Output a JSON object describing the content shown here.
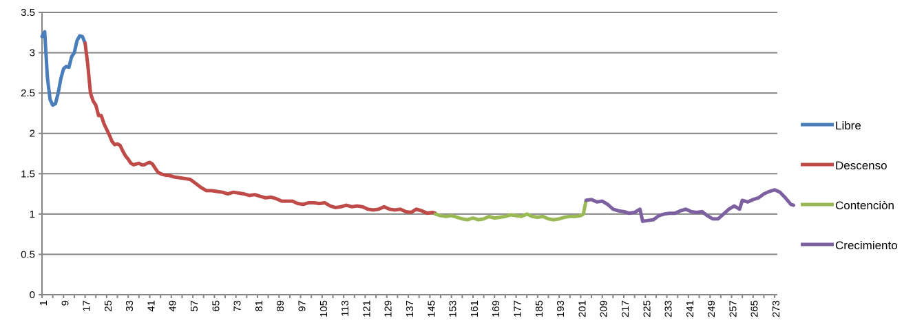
{
  "chart_data": {
    "type": "line",
    "title": "",
    "xlabel": "",
    "ylabel": "",
    "ylim": [
      0,
      3.5
    ],
    "xlim": [
      1,
      273
    ],
    "y_ticks": [
      "0",
      "0.5",
      "1",
      "1.5",
      "2",
      "2.5",
      "3",
      "3.5"
    ],
    "x_ticks": [
      1,
      9,
      17,
      25,
      33,
      41,
      49,
      57,
      65,
      73,
      81,
      89,
      97,
      105,
      113,
      121,
      129,
      137,
      145,
      153,
      161,
      169,
      177,
      185,
      193,
      201,
      209,
      217,
      225,
      233,
      241,
      249,
      257,
      265,
      273
    ],
    "grid": "horizontal",
    "legend_position": "right",
    "series": [
      {
        "name": "Libre",
        "color": "#4a7ebb",
        "points": [
          [
            1,
            3.2
          ],
          [
            2,
            3.26
          ],
          [
            3,
            2.7
          ],
          [
            4,
            2.42
          ],
          [
            5,
            2.35
          ],
          [
            6,
            2.37
          ],
          [
            7,
            2.5
          ],
          [
            8,
            2.68
          ],
          [
            9,
            2.8
          ],
          [
            10,
            2.83
          ],
          [
            11,
            2.82
          ],
          [
            12,
            2.95
          ],
          [
            13,
            3.0
          ],
          [
            14,
            3.15
          ],
          [
            15,
            3.21
          ],
          [
            16,
            3.2
          ],
          [
            17,
            3.12
          ]
        ]
      },
      {
        "name": "Descenso",
        "color": "#be4b48",
        "points": [
          [
            17,
            3.12
          ],
          [
            18,
            2.85
          ],
          [
            19,
            2.5
          ],
          [
            20,
            2.4
          ],
          [
            21,
            2.35
          ],
          [
            22,
            2.22
          ],
          [
            23,
            2.22
          ],
          [
            24,
            2.12
          ],
          [
            25,
            2.05
          ],
          [
            26,
            1.98
          ],
          [
            27,
            1.9
          ],
          [
            28,
            1.86
          ],
          [
            29,
            1.87
          ],
          [
            30,
            1.85
          ],
          [
            31,
            1.78
          ],
          [
            32,
            1.72
          ],
          [
            33,
            1.68
          ],
          [
            34,
            1.63
          ],
          [
            35,
            1.61
          ],
          [
            36,
            1.62
          ],
          [
            37,
            1.63
          ],
          [
            38,
            1.61
          ],
          [
            39,
            1.61
          ],
          [
            40,
            1.63
          ],
          [
            41,
            1.64
          ],
          [
            42,
            1.62
          ],
          [
            43,
            1.57
          ],
          [
            44,
            1.52
          ],
          [
            45,
            1.5
          ],
          [
            46,
            1.49
          ],
          [
            47,
            1.48
          ],
          [
            48,
            1.48
          ],
          [
            49,
            1.47
          ],
          [
            50,
            1.46
          ],
          [
            52,
            1.45
          ],
          [
            54,
            1.44
          ],
          [
            56,
            1.43
          ],
          [
            58,
            1.38
          ],
          [
            60,
            1.33
          ],
          [
            62,
            1.29
          ],
          [
            64,
            1.29
          ],
          [
            66,
            1.28
          ],
          [
            68,
            1.27
          ],
          [
            70,
            1.25
          ],
          [
            72,
            1.27
          ],
          [
            74,
            1.26
          ],
          [
            76,
            1.25
          ],
          [
            78,
            1.23
          ],
          [
            80,
            1.24
          ],
          [
            82,
            1.22
          ],
          [
            84,
            1.2
          ],
          [
            86,
            1.21
          ],
          [
            88,
            1.19
          ],
          [
            90,
            1.16
          ],
          [
            92,
            1.16
          ],
          [
            94,
            1.16
          ],
          [
            96,
            1.13
          ],
          [
            98,
            1.12
          ],
          [
            100,
            1.14
          ],
          [
            102,
            1.14
          ],
          [
            104,
            1.13
          ],
          [
            106,
            1.14
          ],
          [
            108,
            1.1
          ],
          [
            110,
            1.08
          ],
          [
            112,
            1.09
          ],
          [
            114,
            1.11
          ],
          [
            116,
            1.09
          ],
          [
            118,
            1.1
          ],
          [
            120,
            1.09
          ],
          [
            122,
            1.06
          ],
          [
            124,
            1.05
          ],
          [
            126,
            1.06
          ],
          [
            128,
            1.09
          ],
          [
            130,
            1.06
          ],
          [
            132,
            1.05
          ],
          [
            134,
            1.06
          ],
          [
            136,
            1.03
          ],
          [
            138,
            1.02
          ],
          [
            140,
            1.06
          ],
          [
            142,
            1.04
          ],
          [
            144,
            1.01
          ],
          [
            146,
            1.02
          ],
          [
            147,
            1.01
          ]
        ]
      },
      {
        "name": "Contenciòn",
        "color": "#98b954",
        "points": [
          [
            147,
            1.0
          ],
          [
            149,
            0.98
          ],
          [
            151,
            0.97
          ],
          [
            153,
            0.98
          ],
          [
            155,
            0.96
          ],
          [
            157,
            0.94
          ],
          [
            159,
            0.93
          ],
          [
            161,
            0.95
          ],
          [
            163,
            0.93
          ],
          [
            165,
            0.94
          ],
          [
            167,
            0.97
          ],
          [
            169,
            0.95
          ],
          [
            171,
            0.96
          ],
          [
            173,
            0.97
          ],
          [
            175,
            0.99
          ],
          [
            177,
            0.98
          ],
          [
            179,
            0.97
          ],
          [
            181,
            1.0
          ],
          [
            183,
            0.97
          ],
          [
            185,
            0.96
          ],
          [
            187,
            0.97
          ],
          [
            189,
            0.94
          ],
          [
            191,
            0.93
          ],
          [
            193,
            0.94
          ],
          [
            195,
            0.96
          ],
          [
            197,
            0.97
          ],
          [
            199,
            0.97
          ],
          [
            201,
            0.98
          ],
          [
            202,
            1.0
          ],
          [
            203,
            1.17
          ]
        ]
      },
      {
        "name": "Crecimiento",
        "color": "#7d60a0",
        "points": [
          [
            203,
            1.17
          ],
          [
            205,
            1.18
          ],
          [
            207,
            1.15
          ],
          [
            209,
            1.16
          ],
          [
            211,
            1.12
          ],
          [
            213,
            1.06
          ],
          [
            215,
            1.04
          ],
          [
            217,
            1.03
          ],
          [
            219,
            1.01
          ],
          [
            221,
            1.02
          ],
          [
            223,
            1.06
          ],
          [
            224,
            0.91
          ],
          [
            226,
            0.92
          ],
          [
            228,
            0.93
          ],
          [
            230,
            0.98
          ],
          [
            232,
            1.0
          ],
          [
            234,
            1.01
          ],
          [
            236,
            1.01
          ],
          [
            238,
            1.04
          ],
          [
            240,
            1.06
          ],
          [
            242,
            1.03
          ],
          [
            244,
            1.02
          ],
          [
            246,
            1.03
          ],
          [
            248,
            0.98
          ],
          [
            250,
            0.94
          ],
          [
            252,
            0.94
          ],
          [
            254,
            1.0
          ],
          [
            256,
            1.06
          ],
          [
            258,
            1.1
          ],
          [
            260,
            1.06
          ],
          [
            261,
            1.17
          ],
          [
            263,
            1.15
          ],
          [
            265,
            1.18
          ],
          [
            267,
            1.2
          ],
          [
            269,
            1.25
          ],
          [
            271,
            1.28
          ],
          [
            273,
            1.3
          ],
          [
            275,
            1.27
          ],
          [
            277,
            1.2
          ],
          [
            279,
            1.12
          ],
          [
            280,
            1.11
          ]
        ]
      }
    ]
  }
}
